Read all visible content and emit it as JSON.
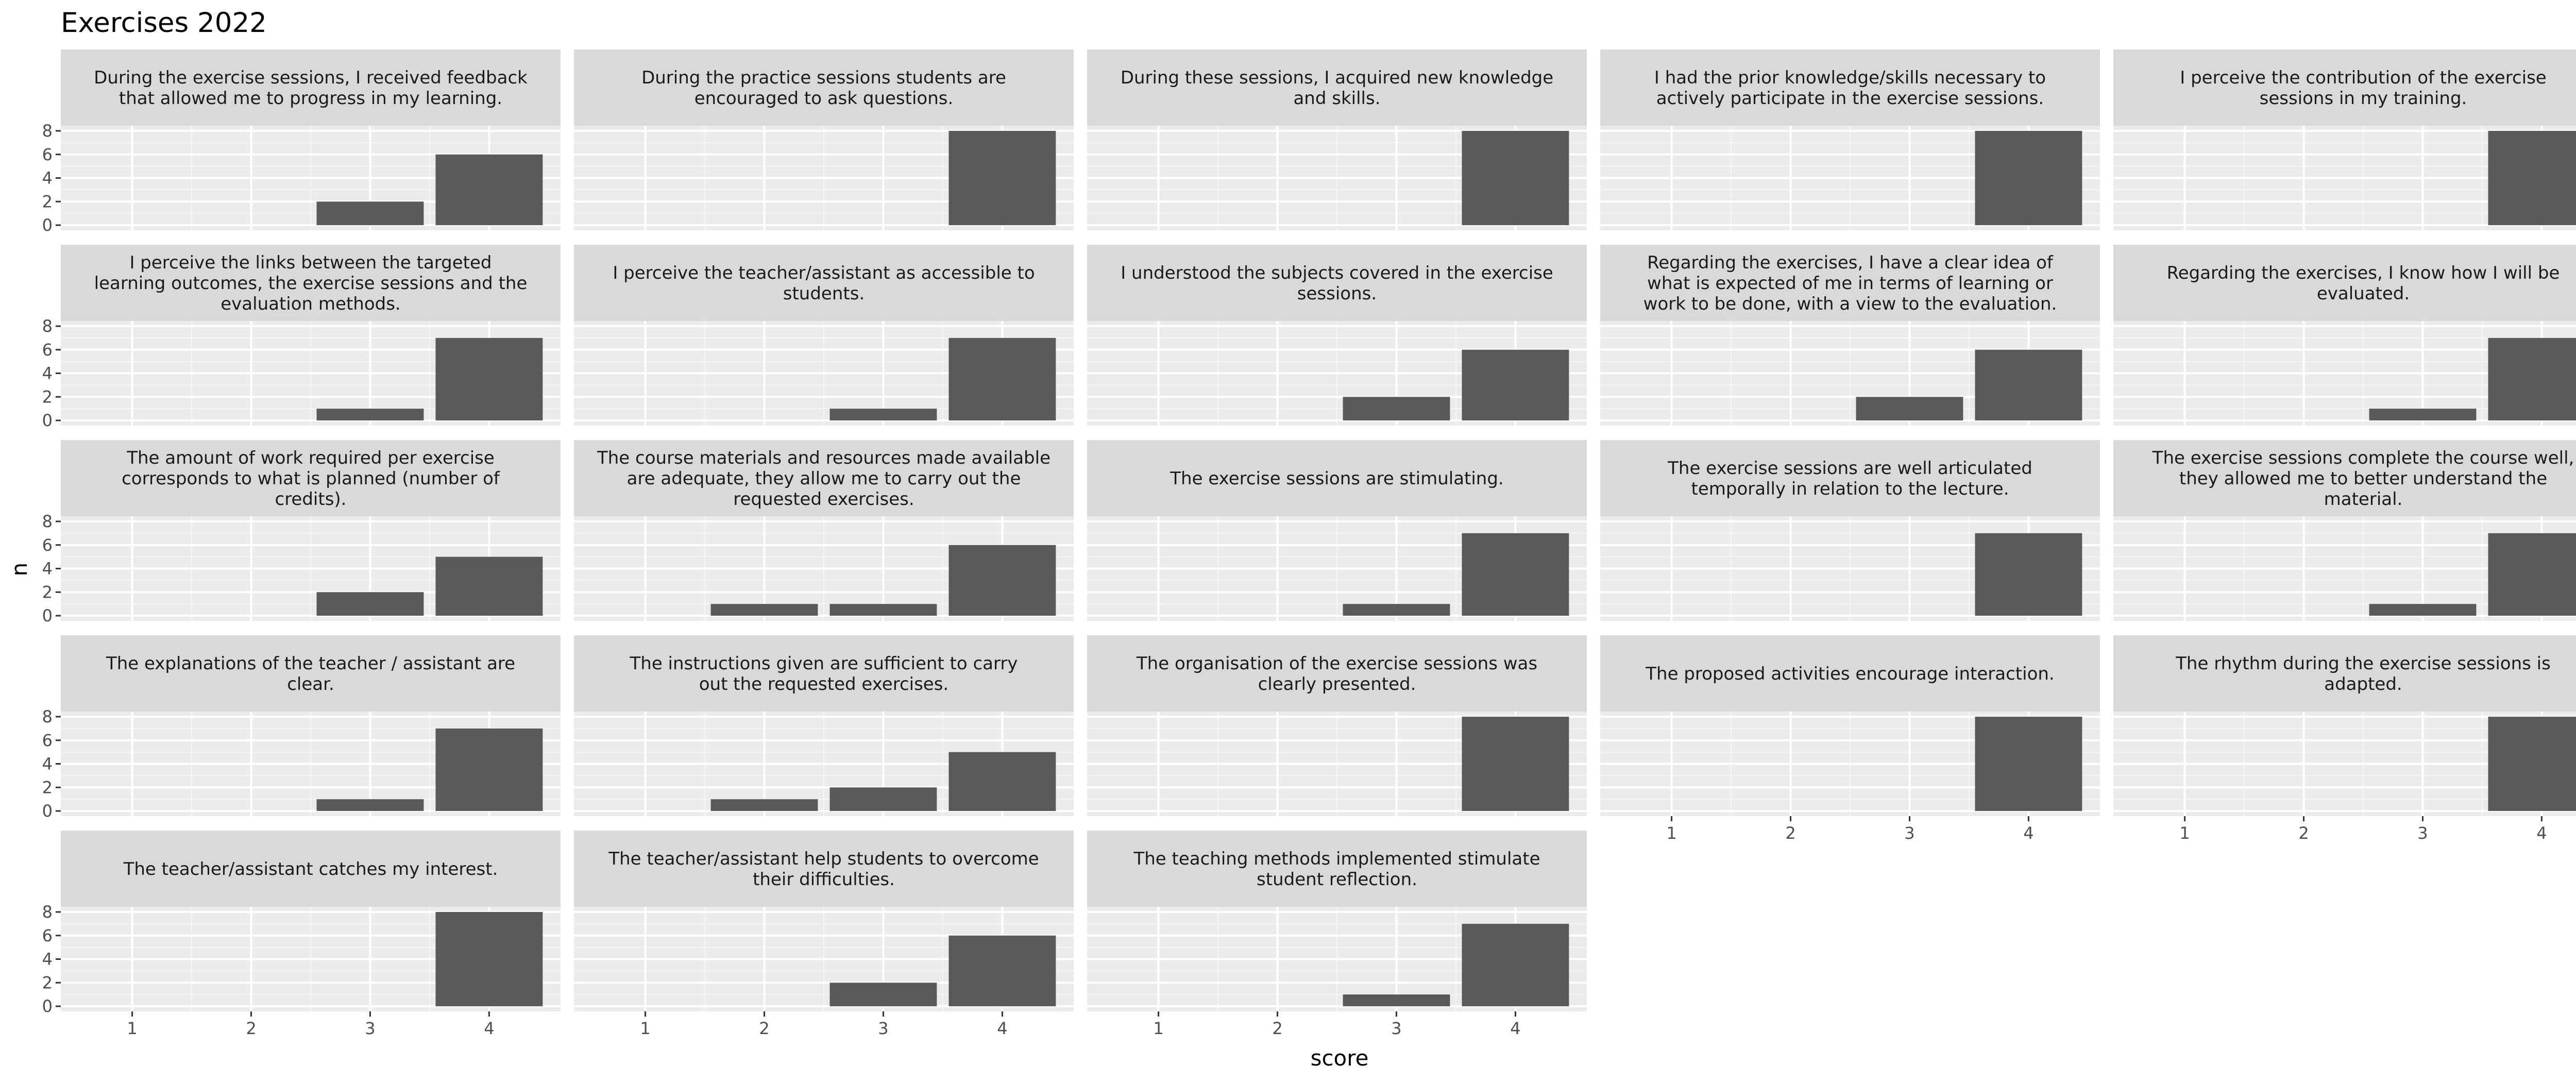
{
  "chart_data": {
    "type": "bar",
    "title": "Exercises 2022",
    "xlabel": "score",
    "ylabel": "n",
    "x_ticks": [
      "1",
      "2",
      "3",
      "4"
    ],
    "y_ticks": [
      "0",
      "2",
      "4",
      "6",
      "8"
    ],
    "ylim": [
      0,
      8
    ],
    "grid": true,
    "colors": {
      "bar": "#595959",
      "panel_bg": "#ebebeb",
      "strip_bg": "#d9d9d9",
      "grid_major": "#ffffff",
      "grid_minor": "#f5f5f5"
    },
    "facets": [
      {
        "title": [
          "During the exercise sessions, I received feedback",
          "that allowed me to progress in my learning."
        ],
        "values": [
          0,
          0,
          2,
          6
        ]
      },
      {
        "title": [
          "During the practice sessions students are",
          "encouraged to ask questions."
        ],
        "values": [
          0,
          0,
          0,
          8
        ]
      },
      {
        "title": [
          "During these sessions, I acquired new knowledge",
          "and skills."
        ],
        "values": [
          0,
          0,
          0,
          8
        ]
      },
      {
        "title": [
          "I had the prior knowledge/skills necessary to",
          "actively participate in the exercise sessions."
        ],
        "values": [
          0,
          0,
          0,
          8
        ]
      },
      {
        "title": [
          "I perceive the contribution of the exercise",
          "sessions in my training."
        ],
        "values": [
          0,
          0,
          0,
          8
        ]
      },
      {
        "title": [
          "I perceive the links between the targeted",
          "learning outcomes, the exercise sessions and the",
          "evaluation methods."
        ],
        "values": [
          0,
          0,
          1,
          7
        ]
      },
      {
        "title": [
          "I perceive the teacher/assistant as accessible to",
          "students."
        ],
        "values": [
          0,
          0,
          1,
          7
        ]
      },
      {
        "title": [
          "I understood the subjects covered in the exercise",
          "sessions."
        ],
        "values": [
          0,
          0,
          2,
          6
        ]
      },
      {
        "title": [
          "Regarding the exercises, I have a clear idea of",
          "what is expected of me in terms of learning or",
          "work to be done, with a view to the evaluation."
        ],
        "values": [
          0,
          0,
          2,
          6
        ]
      },
      {
        "title": [
          "Regarding the exercises, I know how I will be",
          "evaluated."
        ],
        "values": [
          0,
          0,
          1,
          7
        ]
      },
      {
        "title": [
          "The amount of work required per exercise",
          "corresponds to what is planned (number of",
          "credits)."
        ],
        "values": [
          0,
          0,
          2,
          5
        ]
      },
      {
        "title": [
          "The course materials and resources made available",
          "are adequate, they allow me to carry out the",
          "requested exercises."
        ],
        "values": [
          0,
          1,
          1,
          6
        ]
      },
      {
        "title": [
          "The exercise sessions are stimulating."
        ],
        "values": [
          0,
          0,
          1,
          7
        ]
      },
      {
        "title": [
          "The exercise sessions are well articulated",
          "temporally in relation to the lecture."
        ],
        "values": [
          0,
          0,
          0,
          7
        ]
      },
      {
        "title": [
          "The exercise sessions complete the course well,",
          "they allowed me to better understand the",
          "material."
        ],
        "values": [
          0,
          0,
          1,
          7
        ]
      },
      {
        "title": [
          "The explanations of the teacher / assistant are",
          "clear."
        ],
        "values": [
          0,
          0,
          1,
          7
        ]
      },
      {
        "title": [
          "The instructions given are sufficient to carry",
          "out the requested exercises."
        ],
        "values": [
          0,
          1,
          2,
          5
        ]
      },
      {
        "title": [
          "The organisation of the exercise sessions was",
          "clearly presented."
        ],
        "values": [
          0,
          0,
          0,
          8
        ]
      },
      {
        "title": [
          "The proposed activities encourage interaction."
        ],
        "values": [
          0,
          0,
          0,
          8
        ]
      },
      {
        "title": [
          "The rhythm during the exercise sessions is",
          "adapted."
        ],
        "values": [
          0,
          0,
          0,
          8
        ]
      },
      {
        "title": [
          "The teacher/assistant catches my interest."
        ],
        "values": [
          0,
          0,
          0,
          8
        ]
      },
      {
        "title": [
          "The teacher/assistant help students to overcome",
          "their difficulties."
        ],
        "values": [
          0,
          0,
          2,
          6
        ]
      },
      {
        "title": [
          "The teaching methods implemented stimulate",
          "student reflection."
        ],
        "values": [
          0,
          0,
          1,
          7
        ]
      }
    ]
  }
}
